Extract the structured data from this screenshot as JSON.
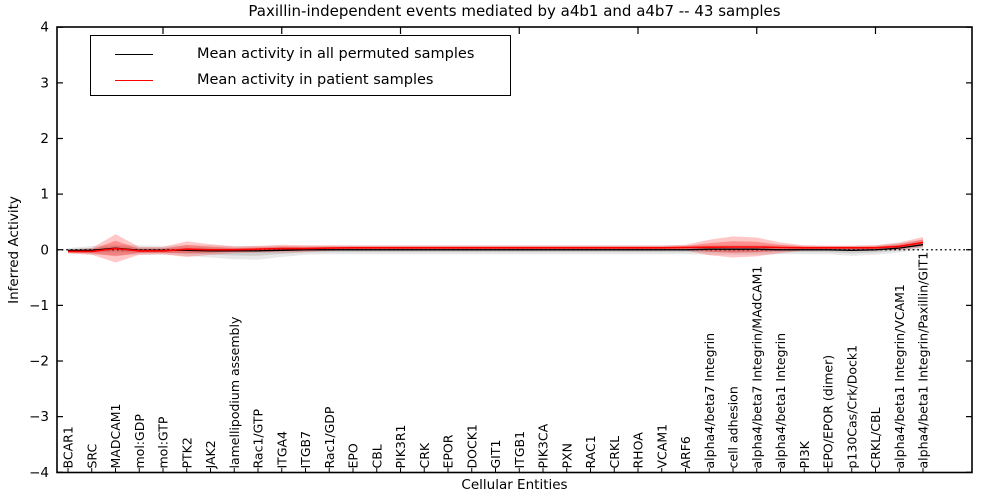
{
  "title": "Paxillin-independent events mediated by a4b1 and a4b7 -- 43 samples",
  "legend": {
    "entries": [
      {
        "label": "Mean activity in all permuted samples",
        "color": "#000000"
      },
      {
        "label": "Mean activity in patient samples",
        "color": "#ff0000"
      }
    ]
  },
  "chart_data": {
    "type": "line",
    "title": "Paxillin-independent events mediated by a4b1 and a4b7 -- 43 samples",
    "xlabel": "Cellular Entities",
    "ylabel": "Inferred Activity",
    "ylim": [
      -4,
      4
    ],
    "yticks": [
      4,
      3,
      2,
      1,
      0,
      -1,
      -2,
      -3,
      -4
    ],
    "zero_line_style": "dotted",
    "grid": false,
    "legend_position": "upper left",
    "band_inner_ratio": 0.55,
    "top_tick_indices": [
      4,
      9,
      14,
      19,
      24,
      29,
      34
    ],
    "categories": [
      "BCAR1",
      "SRC",
      "MADCAM1",
      "mol:GDP",
      "mol:GTP",
      "PTK2",
      "JAK2",
      "lamellipodium assembly",
      "Rac1/GTP",
      "ITGA4",
      "ITGB7",
      "Rac1/GDP",
      "EPO",
      "CBL",
      "PIK3R1",
      "CRK",
      "EPOR",
      "DOCK1",
      "GIT1",
      "ITGB1",
      "PIK3CA",
      "PXN",
      "RAC1",
      "CRKL",
      "RHOA",
      "VCAM1",
      "ARF6",
      "alpha4/beta7 Integrin",
      "cell adhesion",
      "alpha4/beta7 Integrin/MAdCAM1",
      "alpha4/beta1 Integrin",
      "PI3K",
      "EPO/EPOR (dimer)",
      "p130Cas/Crk/Dock1",
      "CRKL/CBL",
      "alpha4/beta1 Integrin/VCAM1",
      "alpha4/beta1 Integrin/Paxillin/GIT1"
    ],
    "series": [
      {
        "name": "Mean activity in all permuted samples",
        "color": "#000000",
        "band_color": "#000000",
        "band_alpha": 0.09,
        "values": [
          -0.01,
          -0.01,
          0.03,
          -0.01,
          -0.01,
          -0.01,
          -0.02,
          -0.02,
          -0.02,
          -0.01,
          0,
          0,
          0,
          0,
          0,
          0,
          0,
          0,
          0,
          0,
          0,
          0,
          0,
          0,
          0,
          0,
          0,
          0.01,
          0.01,
          0.01,
          0,
          0,
          0,
          -0.01,
          0,
          0.03,
          0.09
        ],
        "band_upper": [
          0.03,
          0.07,
          0.09,
          0.08,
          0.07,
          0.08,
          0.08,
          0.07,
          0.07,
          0.07,
          0.07,
          0.07,
          0.08,
          0.08,
          0.08,
          0.08,
          0.08,
          0.08,
          0.08,
          0.08,
          0.08,
          0.08,
          0.08,
          0.08,
          0.08,
          0.08,
          0.08,
          0.08,
          0.09,
          0.09,
          0.08,
          0.07,
          0.07,
          0.07,
          0.08,
          0.12,
          0.18
        ],
        "band_lower": [
          -0.05,
          -0.09,
          -0.1,
          -0.09,
          -0.09,
          -0.11,
          -0.14,
          -0.17,
          -0.18,
          -0.13,
          -0.09,
          -0.08,
          -0.08,
          -0.08,
          -0.08,
          -0.08,
          -0.08,
          -0.08,
          -0.08,
          -0.08,
          -0.08,
          -0.08,
          -0.08,
          -0.08,
          -0.08,
          -0.08,
          -0.08,
          -0.09,
          -0.09,
          -0.09,
          -0.08,
          -0.08,
          -0.08,
          -0.11,
          -0.09,
          -0.05,
          0.01
        ]
      },
      {
        "name": "Mean activity in patient samples",
        "color": "#ff0000",
        "band_color": "#ff0000",
        "band_alpha": 0.22,
        "values": [
          -0.03,
          -0.03,
          0.02,
          -0.02,
          -0.02,
          0.01,
          0,
          0,
          0.01,
          0.02,
          0.02,
          0.03,
          0.035,
          0.035,
          0.035,
          0.035,
          0.035,
          0.035,
          0.035,
          0.035,
          0.035,
          0.035,
          0.035,
          0.035,
          0.035,
          0.035,
          0.04,
          0.045,
          0.05,
          0.05,
          0.04,
          0.035,
          0.035,
          0.035,
          0.035,
          0.06,
          0.13
        ],
        "band_upper": [
          0.0,
          0.03,
          0.28,
          0.05,
          0.05,
          0.15,
          0.1,
          0.06,
          0.07,
          0.09,
          0.08,
          0.08,
          0.075,
          0.075,
          0.075,
          0.075,
          0.075,
          0.075,
          0.075,
          0.075,
          0.075,
          0.075,
          0.075,
          0.075,
          0.075,
          0.075,
          0.09,
          0.18,
          0.24,
          0.22,
          0.13,
          0.08,
          0.075,
          0.075,
          0.08,
          0.13,
          0.23
        ],
        "band_lower": [
          -0.07,
          -0.09,
          -0.23,
          -0.09,
          -0.08,
          -0.13,
          -0.09,
          -0.06,
          -0.05,
          -0.05,
          -0.04,
          -0.02,
          -0.005,
          -0.005,
          -0.005,
          -0.005,
          -0.005,
          -0.005,
          -0.005,
          -0.005,
          -0.005,
          -0.005,
          -0.005,
          -0.005,
          -0.005,
          -0.005,
          -0.01,
          -0.1,
          -0.14,
          -0.12,
          -0.06,
          -0.01,
          -0.005,
          -0.005,
          -0.005,
          0.0,
          0.05
        ]
      }
    ]
  }
}
